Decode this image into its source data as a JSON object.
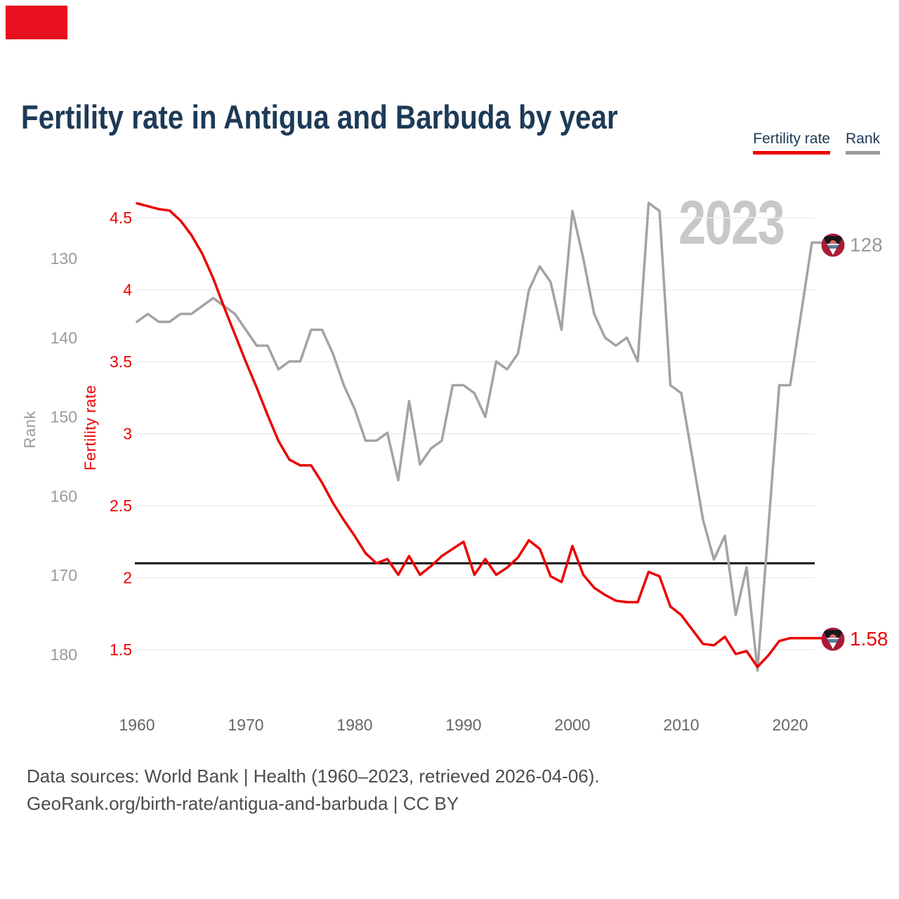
{
  "header": {
    "title": "Fertility rate in Antigua and Barbuda by year"
  },
  "legend": [
    {
      "label": "Fertility rate",
      "color": "#ec0000"
    },
    {
      "label": "Rank",
      "color": "#9a9a9a"
    }
  ],
  "watermark_year": "2023",
  "endpoints": {
    "rank": {
      "label": "128",
      "flag": "antigua-and-barbuda-flag"
    },
    "fertility": {
      "label": "1.58",
      "flag": "antigua-and-barbuda-flag"
    }
  },
  "footer": {
    "line1": "Data sources: World Bank | Health (1960–2023, retrieved 2026-04-06).",
    "line2": "GeoRank.org/birth-rate/antigua-and-barbuda | CC BY"
  },
  "colors": {
    "accent_red": "#ec0000",
    "line_gray": "#a3a3a3",
    "navy": "#1d3a56",
    "grid": "#ededed",
    "reference_black": "#111111",
    "tick_gray": "#9a9a9a",
    "xtick": "#666666",
    "watermark": "#c8c8c8",
    "footer": "#4c4c4c",
    "brand_red": "#e8101e"
  },
  "chart_data": {
    "type": "line",
    "title": "Fertility rate in Antigua and Barbuda by year",
    "x_start_year": 1960,
    "x_end_year": 2023,
    "x_ticks": [
      1960,
      1970,
      1980,
      1990,
      2000,
      2010,
      2020
    ],
    "grid": "horizontal-only",
    "legend_position": "top-right",
    "reference_line": {
      "value": 2.1,
      "meaning": "replacement-level fertility"
    },
    "fertility_axis": {
      "title": "Fertility rate",
      "ticks": [
        4.5,
        4,
        3.5,
        3,
        2.5,
        2,
        1.5
      ],
      "range": [
        1.3,
        4.75
      ]
    },
    "rank_axis": {
      "title": "Rank",
      "ticks": [
        130,
        140,
        150,
        160,
        170,
        180
      ],
      "range": [
        123,
        184
      ],
      "inverted": true
    },
    "series": [
      {
        "name": "Fertility rate",
        "axis": "fertility",
        "color": "#ec0000",
        "end_label": "1.58",
        "values": [
          4.6,
          4.58,
          4.56,
          4.55,
          4.48,
          4.38,
          4.25,
          4.08,
          3.88,
          3.69,
          3.5,
          3.32,
          3.13,
          2.95,
          2.82,
          2.78,
          2.78,
          2.66,
          2.52,
          2.4,
          2.29,
          2.17,
          2.1,
          2.13,
          2.02,
          2.15,
          2.02,
          2.08,
          2.15,
          2.2,
          2.25,
          2.02,
          2.13,
          2.02,
          2.07,
          2.14,
          2.26,
          2.2,
          2.01,
          1.97,
          2.22,
          2.02,
          1.93,
          1.88,
          1.84,
          1.83,
          1.83,
          2.04,
          2.01,
          1.8,
          1.74,
          1.64,
          1.54,
          1.53,
          1.59,
          1.47,
          1.49,
          1.38,
          1.46,
          1.56,
          1.58,
          1.58,
          1.58,
          1.58
        ]
      },
      {
        "name": "Rank",
        "axis": "rank",
        "color": "#a3a3a3",
        "end_label": "128",
        "values": [
          138,
          137,
          138,
          138,
          137,
          137,
          136,
          135,
          136,
          137,
          139,
          141,
          141,
          144,
          143,
          143,
          139,
          139,
          142,
          146,
          149,
          153,
          153,
          152,
          158,
          148,
          156,
          154,
          153,
          146,
          146,
          147,
          150,
          143,
          144,
          142,
          134,
          131,
          133,
          139,
          124,
          130,
          137,
          140,
          141,
          140,
          143,
          123,
          124,
          146,
          147,
          155,
          163,
          168,
          165,
          175,
          169,
          182,
          164,
          146,
          146,
          137,
          128,
          128
        ]
      }
    ]
  }
}
